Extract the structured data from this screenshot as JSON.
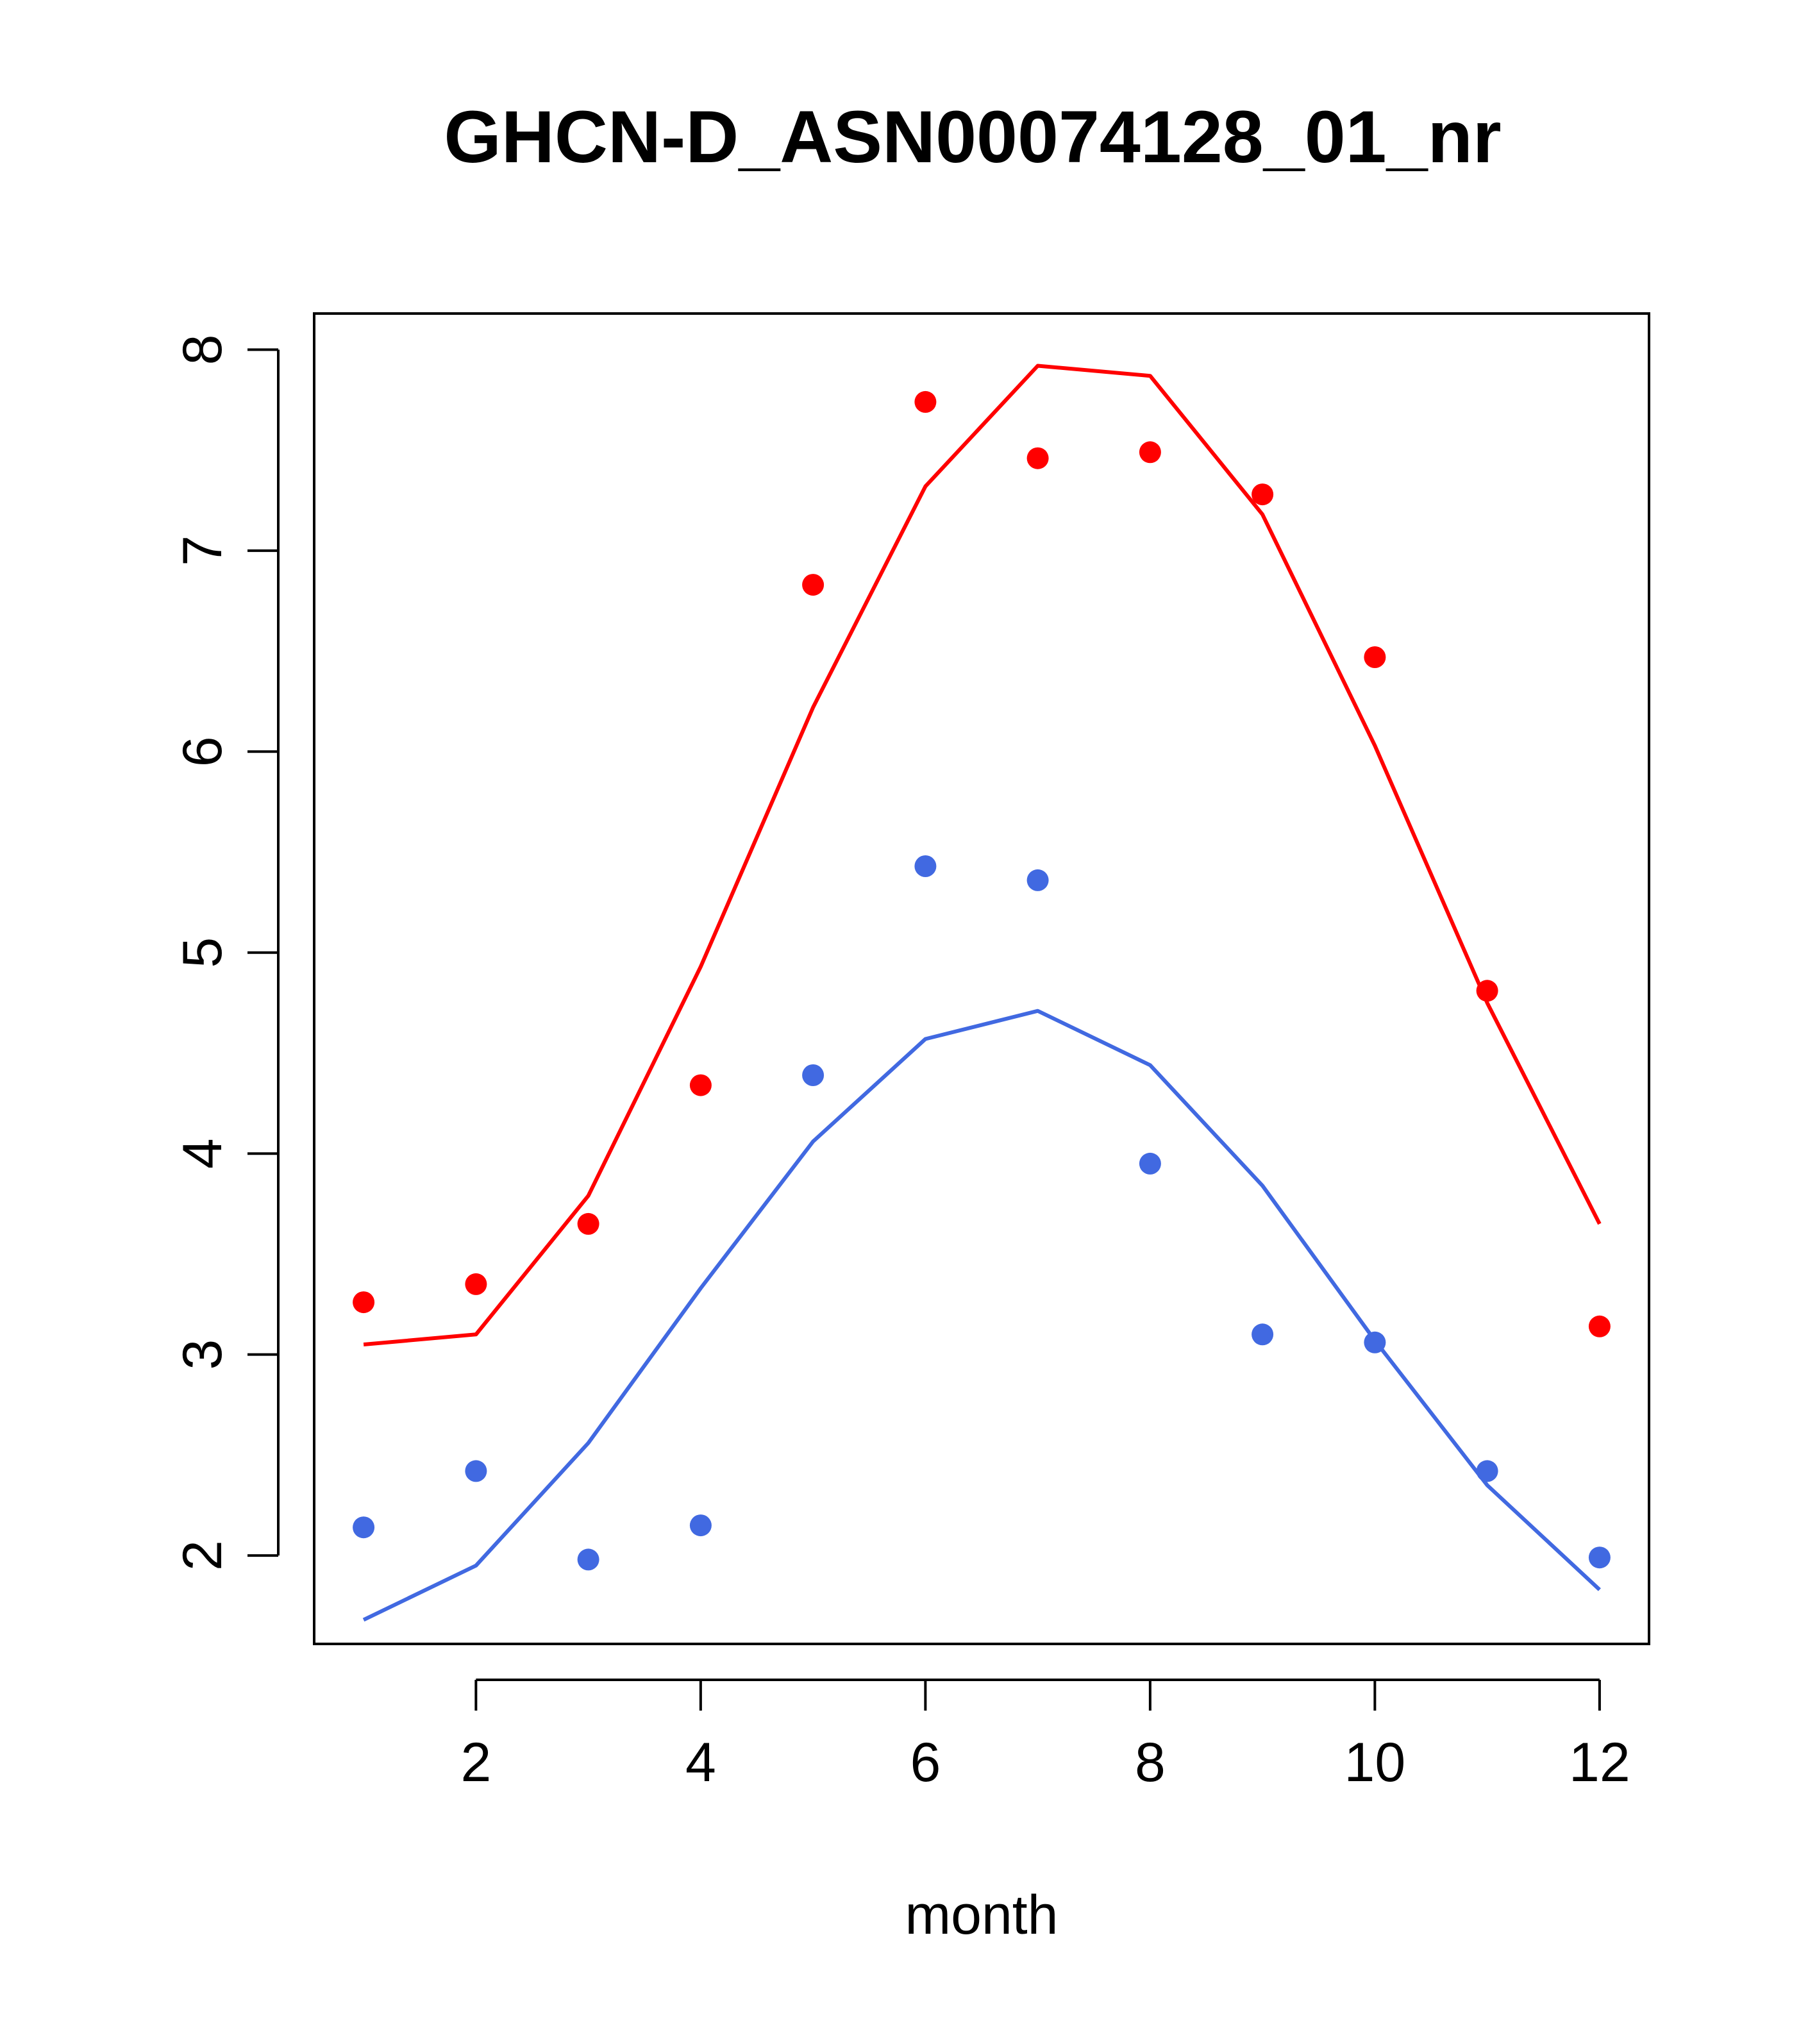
{
  "chart_data": {
    "type": "line",
    "title": "GHCN-D_ASN00074128_01_nr",
    "xlabel": "month",
    "ylabel": "",
    "xlim": [
      0.56,
      12.44
    ],
    "ylim": [
      1.56,
      8.18
    ],
    "x_ticks": [
      2,
      4,
      6,
      8,
      10,
      12
    ],
    "y_ticks": [
      2,
      3,
      4,
      5,
      6,
      7,
      8
    ],
    "grid": false,
    "series": [
      {
        "color": "#ff0000",
        "x": [
          1,
          2,
          3,
          4,
          5,
          6,
          7,
          8,
          9,
          10,
          11,
          12
        ],
        "points": [
          3.26,
          3.35,
          3.65,
          4.34,
          6.83,
          7.74,
          7.46,
          7.49,
          7.28,
          6.47,
          4.81,
          3.14
        ],
        "line": [
          3.05,
          3.1,
          3.79,
          4.93,
          6.22,
          7.32,
          7.92,
          7.87,
          7.18,
          6.03,
          4.75,
          3.65
        ]
      },
      {
        "color": "#4169e1",
        "x": [
          1,
          2,
          3,
          4,
          5,
          6,
          7,
          8,
          9,
          10,
          11,
          12
        ],
        "points": [
          2.14,
          2.42,
          1.98,
          2.15,
          4.39,
          5.43,
          5.36,
          3.95,
          3.1,
          3.06,
          2.42,
          1.99
        ],
        "line": [
          1.68,
          1.95,
          2.56,
          3.33,
          4.06,
          4.57,
          4.71,
          4.44,
          3.84,
          3.07,
          2.35,
          1.83
        ]
      }
    ]
  }
}
